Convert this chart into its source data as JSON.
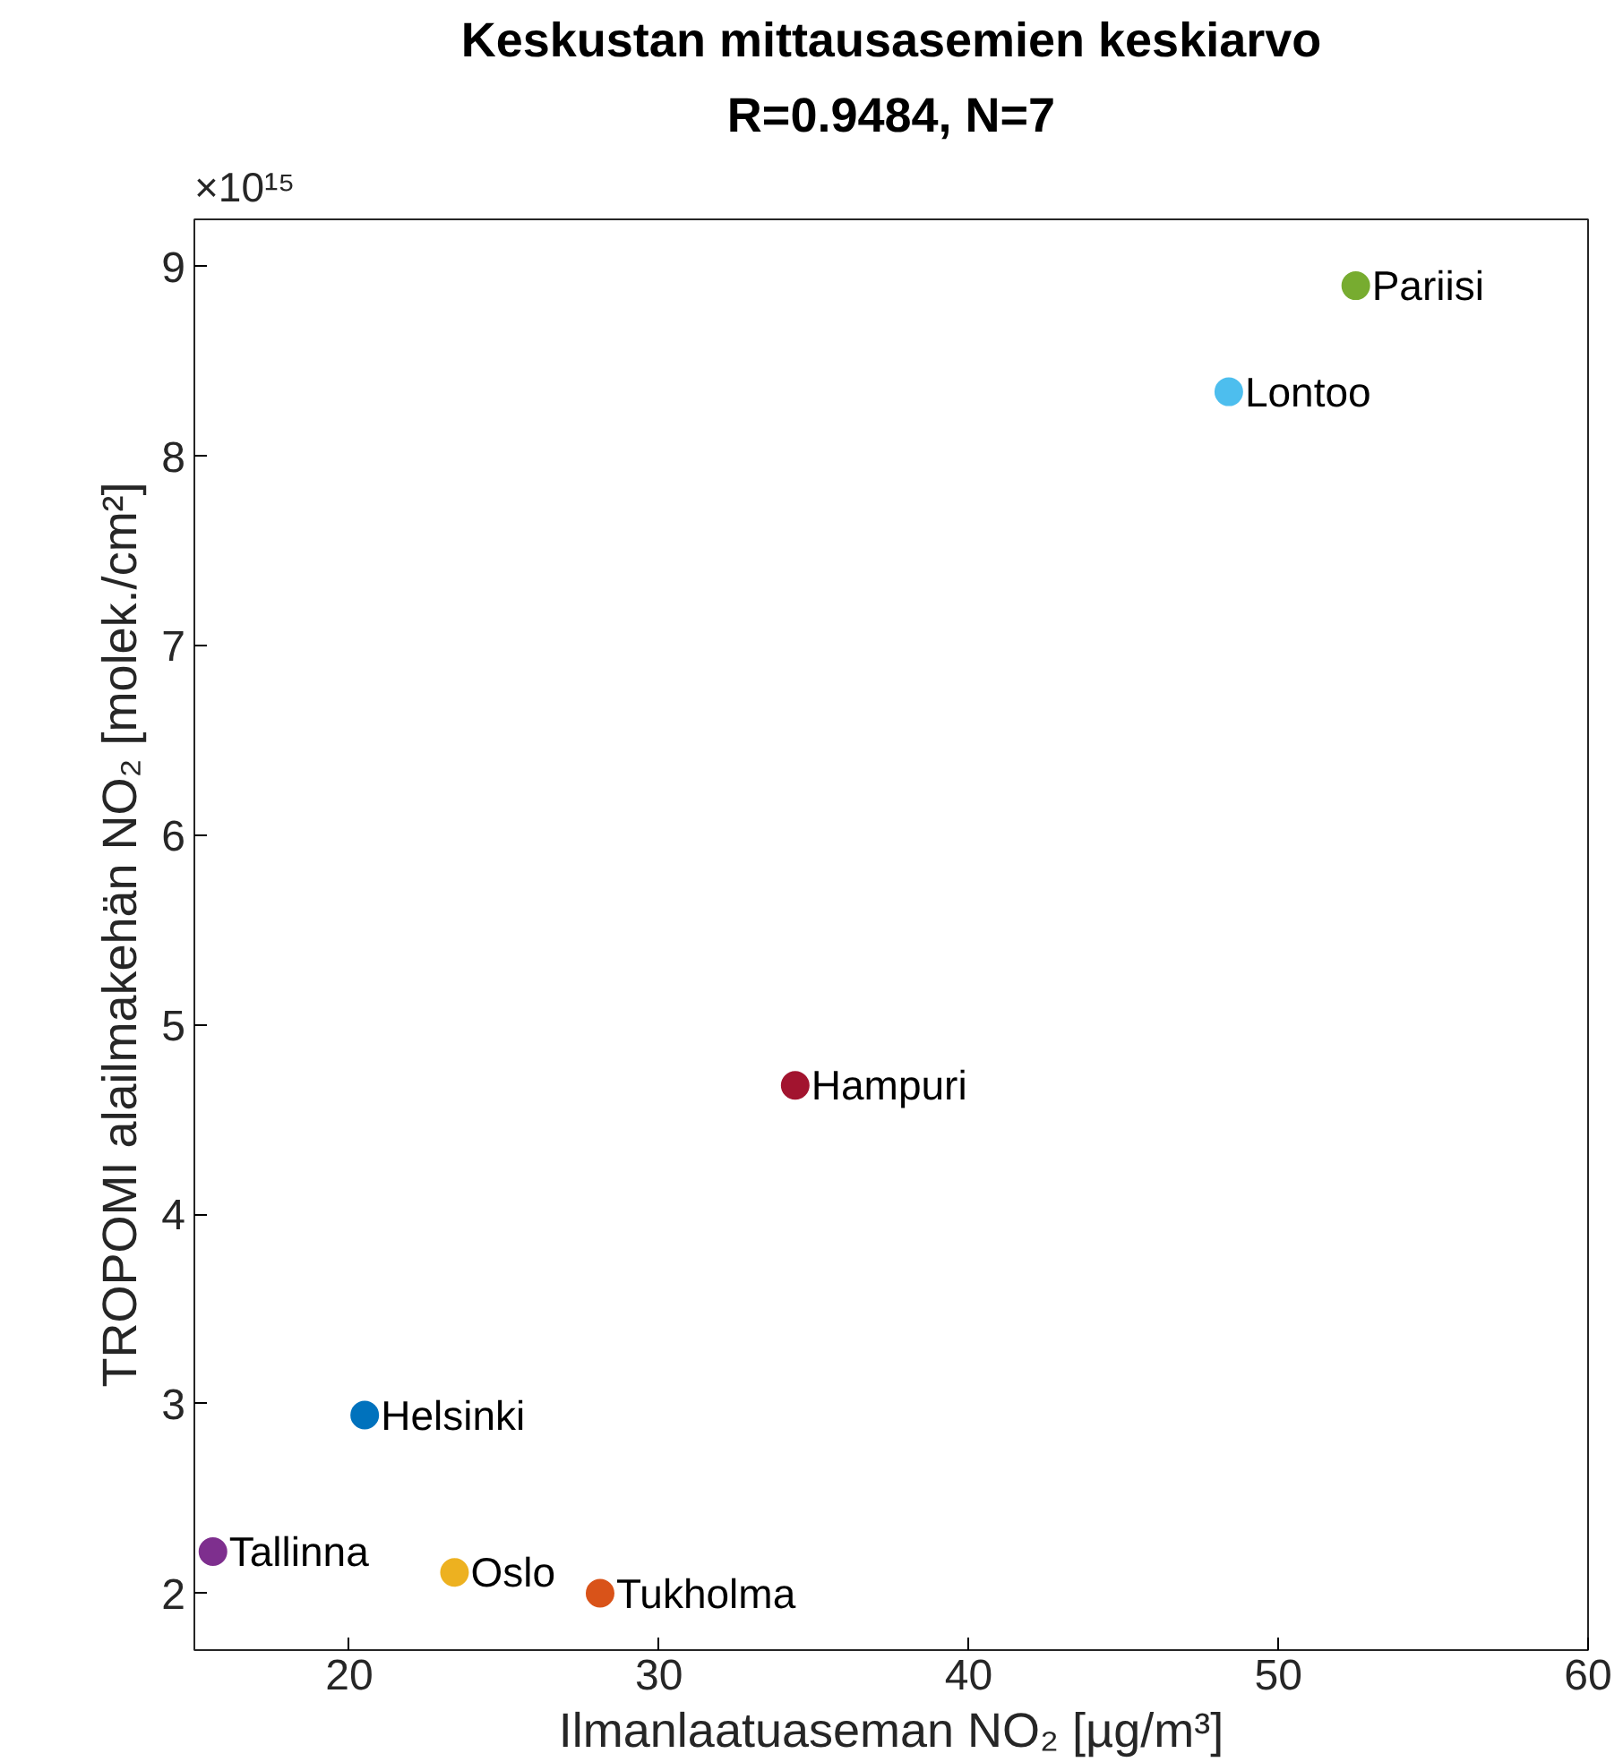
{
  "chart_data": {
    "type": "scatter",
    "title": "Keskustan mittausasemien keskiarvo",
    "subtitle": "R=0.9484, N=7",
    "xlabel": "Ilmanlaatuaseman NO₂ [µg/m³]",
    "ylabel": "TROPOMI alailmakehän NO₂ [molek./cm²]",
    "annotations": [
      "×10¹⁵"
    ],
    "xlim": [
      15,
      60
    ],
    "xticks": [
      20,
      30,
      40,
      50,
      60
    ],
    "ylim": [
      1.7,
      9.25
    ],
    "yticks": [
      2,
      3,
      4,
      5,
      6,
      7,
      8,
      9
    ],
    "grid": false,
    "marker": "circle",
    "series": [
      {
        "name": "Pariisi",
        "color": "#77ac30",
        "x": [
          52.5
        ],
        "values": [
          8.9
        ]
      },
      {
        "name": "Lontoo",
        "color": "#4dbeee",
        "x": [
          48.4
        ],
        "values": [
          8.34
        ]
      },
      {
        "name": "Hampuri",
        "color": "#a2142f",
        "x": [
          34.4
        ],
        "values": [
          4.68
        ]
      },
      {
        "name": "Helsinki",
        "color": "#0072bd",
        "x": [
          20.5
        ],
        "values": [
          2.94
        ]
      },
      {
        "name": "Tallinna",
        "color": "#7e2f8e",
        "x": [
          15.6
        ],
        "values": [
          2.22
        ]
      },
      {
        "name": "Oslo",
        "color": "#edb120",
        "x": [
          23.4
        ],
        "values": [
          2.11
        ]
      },
      {
        "name": "Tukholma",
        "color": "#d95319",
        "x": [
          28.1
        ],
        "values": [
          2.0
        ]
      }
    ]
  }
}
